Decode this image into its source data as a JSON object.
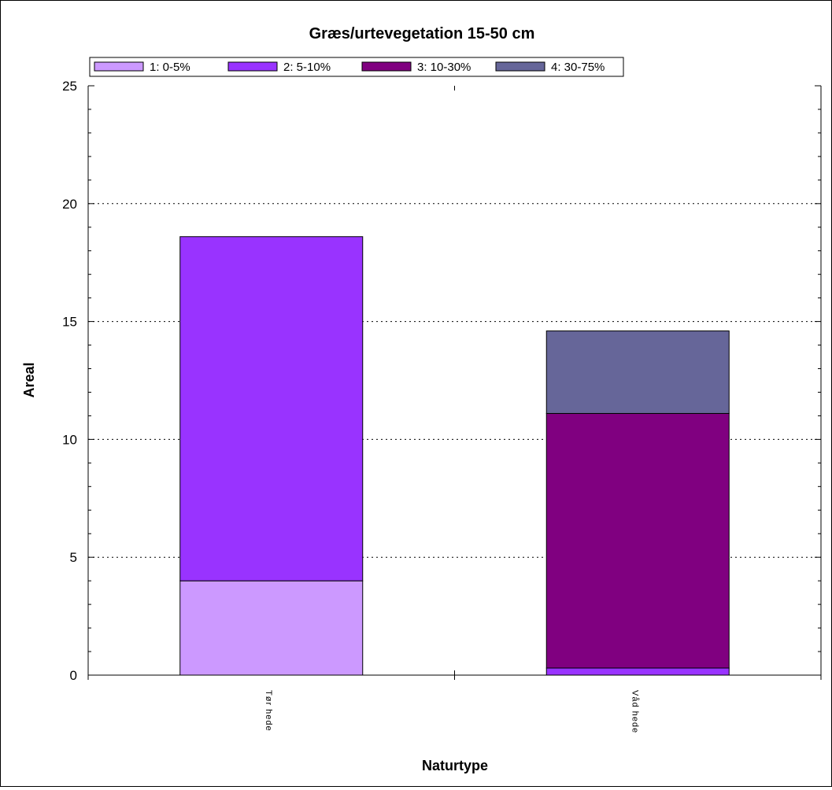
{
  "chart_data": {
    "type": "bar",
    "stacked": true,
    "title": "Græs/urtevegetation 15-50 cm",
    "xlabel": "Naturtype",
    "ylabel": "Areal",
    "categories": [
      "Tør hede",
      "Våd hede"
    ],
    "ylim": [
      0,
      25
    ],
    "yticks": [
      "0",
      "5",
      "10",
      "15",
      "20",
      "25"
    ],
    "grid": "horizontal dotted",
    "legend_position": "top",
    "series": [
      {
        "name": "1: 0-5%",
        "color": "#cc99ff",
        "values": [
          4.0,
          0.0
        ]
      },
      {
        "name": "2: 5-10%",
        "color": "#9933ff",
        "values": [
          14.6,
          0.3
        ]
      },
      {
        "name": "3: 10-30%",
        "color": "#800080",
        "values": [
          0.0,
          10.8
        ]
      },
      {
        "name": "4: 30-75%",
        "color": "#666699",
        "values": [
          0.0,
          3.5
        ]
      }
    ]
  }
}
